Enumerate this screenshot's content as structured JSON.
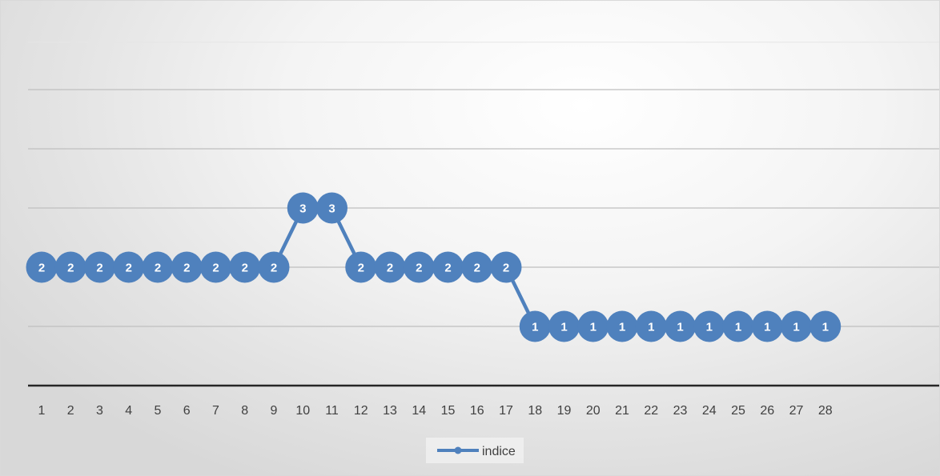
{
  "chart_data": {
    "type": "line",
    "title": "",
    "xlabel": "",
    "ylabel": "",
    "categories": [
      "1",
      "2",
      "3",
      "4",
      "5",
      "6",
      "7",
      "8",
      "9",
      "10",
      "11",
      "12",
      "13",
      "14",
      "15",
      "16",
      "17",
      "18",
      "19",
      "20",
      "21",
      "22",
      "23",
      "24",
      "25",
      "26",
      "27",
      "28"
    ],
    "series": [
      {
        "name": "indice",
        "values": [
          2,
          2,
          2,
          2,
          2,
          2,
          2,
          2,
          2,
          3,
          3,
          2,
          2,
          2,
          2,
          2,
          2,
          1,
          1,
          1,
          1,
          1,
          1,
          1,
          1,
          1,
          1,
          1
        ],
        "color": "#4F81BD",
        "marker": "circle",
        "data_labels": true
      }
    ],
    "ylim": [
      0,
      6
    ],
    "y_gridlines": [
      1,
      2,
      3,
      4,
      5
    ],
    "y_axis_labels_shown": false,
    "grid": true,
    "legend": "bottom",
    "colors": {
      "series": "#4F81BD",
      "gridline": "#bfbfbf",
      "axis": "#262626",
      "label_text": "#ffffff",
      "tick_text": "#404040"
    }
  }
}
